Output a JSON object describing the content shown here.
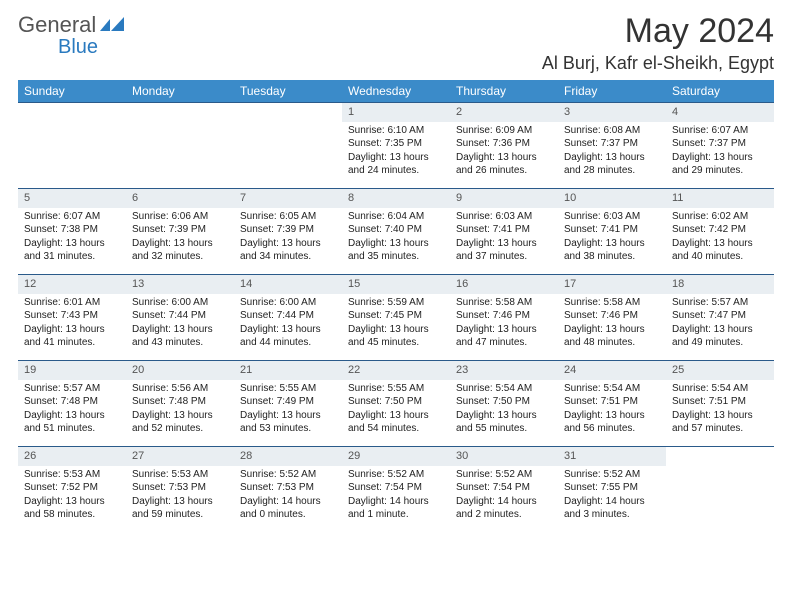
{
  "brand": {
    "part1": "General",
    "part2": "Blue",
    "logo_color": "#2a7abf"
  },
  "title": {
    "month": "May 2024",
    "location": "Al Burj, Kafr el-Sheikh, Egypt"
  },
  "colors": {
    "header_bg": "#3b8bc9",
    "header_text": "#ffffff",
    "daynum_bg": "#e9eef2",
    "row_border": "#2a5a8a",
    "text": "#222222",
    "page_bg": "#ffffff"
  },
  "weekdays": [
    "Sunday",
    "Monday",
    "Tuesday",
    "Wednesday",
    "Thursday",
    "Friday",
    "Saturday"
  ],
  "first_weekday_index": 3,
  "days_in_month": 31,
  "days": [
    {
      "n": 1,
      "sunrise": "6:10 AM",
      "sunset": "7:35 PM",
      "dl_h": 13,
      "dl_m": 24
    },
    {
      "n": 2,
      "sunrise": "6:09 AM",
      "sunset": "7:36 PM",
      "dl_h": 13,
      "dl_m": 26
    },
    {
      "n": 3,
      "sunrise": "6:08 AM",
      "sunset": "7:37 PM",
      "dl_h": 13,
      "dl_m": 28
    },
    {
      "n": 4,
      "sunrise": "6:07 AM",
      "sunset": "7:37 PM",
      "dl_h": 13,
      "dl_m": 29
    },
    {
      "n": 5,
      "sunrise": "6:07 AM",
      "sunset": "7:38 PM",
      "dl_h": 13,
      "dl_m": 31
    },
    {
      "n": 6,
      "sunrise": "6:06 AM",
      "sunset": "7:39 PM",
      "dl_h": 13,
      "dl_m": 32
    },
    {
      "n": 7,
      "sunrise": "6:05 AM",
      "sunset": "7:39 PM",
      "dl_h": 13,
      "dl_m": 34
    },
    {
      "n": 8,
      "sunrise": "6:04 AM",
      "sunset": "7:40 PM",
      "dl_h": 13,
      "dl_m": 35
    },
    {
      "n": 9,
      "sunrise": "6:03 AM",
      "sunset": "7:41 PM",
      "dl_h": 13,
      "dl_m": 37
    },
    {
      "n": 10,
      "sunrise": "6:03 AM",
      "sunset": "7:41 PM",
      "dl_h": 13,
      "dl_m": 38
    },
    {
      "n": 11,
      "sunrise": "6:02 AM",
      "sunset": "7:42 PM",
      "dl_h": 13,
      "dl_m": 40
    },
    {
      "n": 12,
      "sunrise": "6:01 AM",
      "sunset": "7:43 PM",
      "dl_h": 13,
      "dl_m": 41
    },
    {
      "n": 13,
      "sunrise": "6:00 AM",
      "sunset": "7:44 PM",
      "dl_h": 13,
      "dl_m": 43
    },
    {
      "n": 14,
      "sunrise": "6:00 AM",
      "sunset": "7:44 PM",
      "dl_h": 13,
      "dl_m": 44
    },
    {
      "n": 15,
      "sunrise": "5:59 AM",
      "sunset": "7:45 PM",
      "dl_h": 13,
      "dl_m": 45
    },
    {
      "n": 16,
      "sunrise": "5:58 AM",
      "sunset": "7:46 PM",
      "dl_h": 13,
      "dl_m": 47
    },
    {
      "n": 17,
      "sunrise": "5:58 AM",
      "sunset": "7:46 PM",
      "dl_h": 13,
      "dl_m": 48
    },
    {
      "n": 18,
      "sunrise": "5:57 AM",
      "sunset": "7:47 PM",
      "dl_h": 13,
      "dl_m": 49
    },
    {
      "n": 19,
      "sunrise": "5:57 AM",
      "sunset": "7:48 PM",
      "dl_h": 13,
      "dl_m": 51
    },
    {
      "n": 20,
      "sunrise": "5:56 AM",
      "sunset": "7:48 PM",
      "dl_h": 13,
      "dl_m": 52
    },
    {
      "n": 21,
      "sunrise": "5:55 AM",
      "sunset": "7:49 PM",
      "dl_h": 13,
      "dl_m": 53
    },
    {
      "n": 22,
      "sunrise": "5:55 AM",
      "sunset": "7:50 PM",
      "dl_h": 13,
      "dl_m": 54
    },
    {
      "n": 23,
      "sunrise": "5:54 AM",
      "sunset": "7:50 PM",
      "dl_h": 13,
      "dl_m": 55
    },
    {
      "n": 24,
      "sunrise": "5:54 AM",
      "sunset": "7:51 PM",
      "dl_h": 13,
      "dl_m": 56
    },
    {
      "n": 25,
      "sunrise": "5:54 AM",
      "sunset": "7:51 PM",
      "dl_h": 13,
      "dl_m": 57
    },
    {
      "n": 26,
      "sunrise": "5:53 AM",
      "sunset": "7:52 PM",
      "dl_h": 13,
      "dl_m": 58
    },
    {
      "n": 27,
      "sunrise": "5:53 AM",
      "sunset": "7:53 PM",
      "dl_h": 13,
      "dl_m": 59
    },
    {
      "n": 28,
      "sunrise": "5:52 AM",
      "sunset": "7:53 PM",
      "dl_h": 14,
      "dl_m": 0
    },
    {
      "n": 29,
      "sunrise": "5:52 AM",
      "sunset": "7:54 PM",
      "dl_h": 14,
      "dl_m": 1
    },
    {
      "n": 30,
      "sunrise": "5:52 AM",
      "sunset": "7:54 PM",
      "dl_h": 14,
      "dl_m": 2
    },
    {
      "n": 31,
      "sunrise": "5:52 AM",
      "sunset": "7:55 PM",
      "dl_h": 14,
      "dl_m": 3
    }
  ],
  "labels": {
    "sunrise_prefix": "Sunrise: ",
    "sunset_prefix": "Sunset: ",
    "daylight_prefix": "Daylight: ",
    "hours_word": " hours",
    "and_word": "and ",
    "minutes_word": " minutes.",
    "minute_word": " minute."
  }
}
